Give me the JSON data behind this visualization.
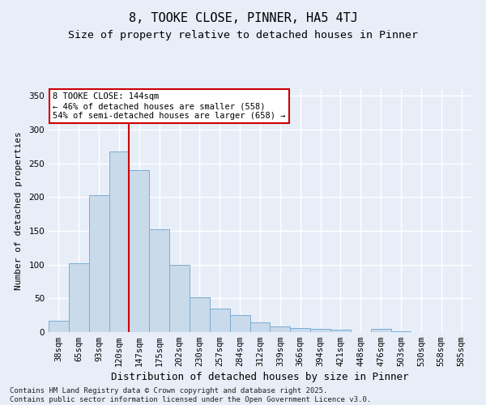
{
  "title1": "8, TOOKE CLOSE, PINNER, HA5 4TJ",
  "title2": "Size of property relative to detached houses in Pinner",
  "xlabel": "Distribution of detached houses by size in Pinner",
  "ylabel": "Number of detached properties",
  "categories": [
    "38sqm",
    "65sqm",
    "93sqm",
    "120sqm",
    "147sqm",
    "175sqm",
    "202sqm",
    "230sqm",
    "257sqm",
    "284sqm",
    "312sqm",
    "339sqm",
    "366sqm",
    "394sqm",
    "421sqm",
    "448sqm",
    "476sqm",
    "503sqm",
    "530sqm",
    "558sqm",
    "585sqm"
  ],
  "values": [
    17,
    102,
    203,
    268,
    240,
    152,
    100,
    52,
    35,
    25,
    14,
    8,
    6,
    5,
    4,
    0,
    5,
    1,
    0,
    0,
    0
  ],
  "bar_color": "#c9daea",
  "bar_edge_color": "#7aadd4",
  "background_color": "#e8eef8",
  "grid_color": "#ffffff",
  "vline_x": 3.5,
  "vline_color": "#cc0000",
  "annotation_line1": "8 TOOKE CLOSE: 144sqm",
  "annotation_line2": "← 46% of detached houses are smaller (558)",
  "annotation_line3": "54% of semi-detached houses are larger (658) →",
  "annotation_box_color": "#ffffff",
  "annotation_box_edge": "#cc0000",
  "ylim": [
    0,
    360
  ],
  "yticks": [
    0,
    50,
    100,
    150,
    200,
    250,
    300,
    350
  ],
  "footer": "Contains HM Land Registry data © Crown copyright and database right 2025.\nContains public sector information licensed under the Open Government Licence v3.0.",
  "title1_fontsize": 11,
  "title2_fontsize": 9.5,
  "xlabel_fontsize": 9,
  "ylabel_fontsize": 8,
  "tick_fontsize": 7.5,
  "footer_fontsize": 6.5,
  "annotation_fontsize": 7.5
}
